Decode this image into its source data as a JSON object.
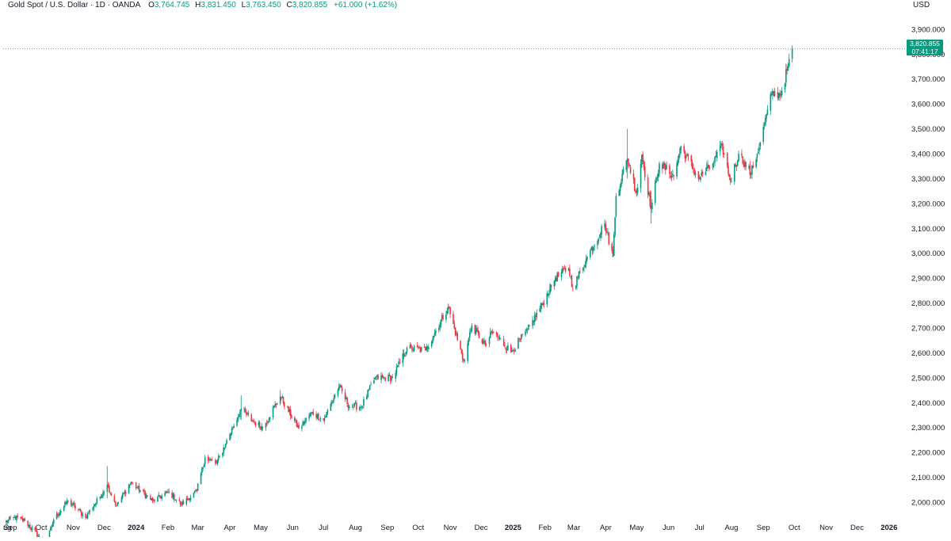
{
  "header": {
    "title": "Gold Spot / U.S. Dollar · 1D · OANDA",
    "open_label": "O",
    "open_value": "3,764.745",
    "high_label": "H",
    "high_value": "3,831.450",
    "low_label": "L",
    "low_value": "3,763.450",
    "close_label": "C",
    "close_value": "3,820.855",
    "change": "+61.000 (+1.62%)"
  },
  "currency": "USD",
  "last_price_tag": {
    "price": "3,820.855",
    "countdown": "07:41:17"
  },
  "colors": {
    "up": "#089981",
    "down": "#f23645",
    "text": "#131722",
    "axis_text": "#131722"
  },
  "chart_data": {
    "type": "candlestick",
    "title": "Gold Spot / U.S. Dollar · 1D · OANDA",
    "ylabel": "USD",
    "y_axis_position": "right",
    "ylim": [
      1930,
      3960
    ],
    "y_ticks": [
      2000,
      2100,
      2200,
      2300,
      2400,
      2500,
      2600,
      2700,
      2800,
      2900,
      3000,
      3100,
      3200,
      3300,
      3400,
      3500,
      3600,
      3700,
      3800,
      3900
    ],
    "y_tick_labels": [
      "2,000.000",
      "2,100.000",
      "2,200.000",
      "2,300.000",
      "2,400.000",
      "2,500.000",
      "2,600.000",
      "2,700.000",
      "2,800.000",
      "2,900.000",
      "3,000.000",
      "3,100.000",
      "3,200.000",
      "3,300.000",
      "3,400.000",
      "3,500.000",
      "3,600.000",
      "3,700.000",
      "3,800.000",
      "3,900.000"
    ],
    "xlim": [
      "2023-08-25",
      "2026-01-15"
    ],
    "x_ticks": [
      {
        "date": "2023-08-28",
        "label": "ug"
      },
      {
        "date": "2023-09-01",
        "label": "Sep"
      },
      {
        "date": "2023-10-01",
        "label": "Oct"
      },
      {
        "date": "2023-11-01",
        "label": "Nov"
      },
      {
        "date": "2023-12-01",
        "label": "Dec"
      },
      {
        "date": "2024-01-01",
        "label": "2024",
        "bold": true
      },
      {
        "date": "2024-02-01",
        "label": "Feb"
      },
      {
        "date": "2024-03-01",
        "label": "Mar"
      },
      {
        "date": "2024-04-01",
        "label": "Apr"
      },
      {
        "date": "2024-05-01",
        "label": "May"
      },
      {
        "date": "2024-06-01",
        "label": "Jun"
      },
      {
        "date": "2024-07-01",
        "label": "Jul"
      },
      {
        "date": "2024-08-01",
        "label": "Aug"
      },
      {
        "date": "2024-09-01",
        "label": "Sep"
      },
      {
        "date": "2024-10-01",
        "label": "Oct"
      },
      {
        "date": "2024-11-01",
        "label": "Nov"
      },
      {
        "date": "2024-12-01",
        "label": "Dec"
      },
      {
        "date": "2025-01-01",
        "label": "2025",
        "bold": true
      },
      {
        "date": "2025-02-01",
        "label": "Feb"
      },
      {
        "date": "2025-03-01",
        "label": "Mar"
      },
      {
        "date": "2025-04-01",
        "label": "Apr"
      },
      {
        "date": "2025-05-01",
        "label": "May"
      },
      {
        "date": "2025-06-01",
        "label": "Jun"
      },
      {
        "date": "2025-07-01",
        "label": "Jul"
      },
      {
        "date": "2025-08-01",
        "label": "Aug"
      },
      {
        "date": "2025-09-01",
        "label": "Sep"
      },
      {
        "date": "2025-10-01",
        "label": "Oct"
      },
      {
        "date": "2025-11-01",
        "label": "Nov"
      },
      {
        "date": "2025-12-01",
        "label": "Dec"
      },
      {
        "date": "2026-01-01",
        "label": "2026",
        "bold": true
      }
    ],
    "last_close": 3820.855,
    "last_price_line": "dotted",
    "grid": false,
    "price_path": [
      [
        "2023-08-25",
        1915
      ],
      [
        "2023-09-04",
        1940
      ],
      [
        "2023-09-15",
        1925
      ],
      [
        "2023-09-28",
        1865
      ],
      [
        "2023-10-05",
        1820
      ],
      [
        "2023-10-13",
        1930
      ],
      [
        "2023-10-27",
        2005
      ],
      [
        "2023-11-13",
        1940
      ],
      [
        "2023-11-30",
        2040
      ],
      [
        "2023-12-04",
        2070
      ],
      [
        "2023-12-13",
        1985
      ],
      [
        "2023-12-27",
        2080
      ],
      [
        "2024-01-17",
        2005
      ],
      [
        "2024-02-02",
        2040
      ],
      [
        "2024-02-14",
        1990
      ],
      [
        "2024-02-29",
        2045
      ],
      [
        "2024-03-08",
        2180
      ],
      [
        "2024-03-19",
        2155
      ],
      [
        "2024-03-28",
        2235
      ],
      [
        "2024-04-12",
        2375
      ],
      [
        "2024-04-23",
        2325
      ],
      [
        "2024-05-03",
        2300
      ],
      [
        "2024-05-20",
        2425
      ],
      [
        "2024-06-07",
        2295
      ],
      [
        "2024-06-20",
        2360
      ],
      [
        "2024-07-01",
        2330
      ],
      [
        "2024-07-16",
        2465
      ],
      [
        "2024-07-26",
        2385
      ],
      [
        "2024-08-07",
        2385
      ],
      [
        "2024-08-20",
        2500
      ],
      [
        "2024-09-06",
        2500
      ],
      [
        "2024-09-20",
        2620
      ],
      [
        "2024-10-08",
        2610
      ],
      [
        "2024-10-30",
        2785
      ],
      [
        "2024-11-14",
        2565
      ],
      [
        "2024-11-22",
        2710
      ],
      [
        "2024-12-05",
        2630
      ],
      [
        "2024-12-12",
        2685
      ],
      [
        "2024-12-30",
        2605
      ],
      [
        "2025-01-15",
        2690
      ],
      [
        "2025-01-30",
        2800
      ],
      [
        "2025-02-11",
        2900
      ],
      [
        "2025-02-24",
        2940
      ],
      [
        "2025-02-28",
        2860
      ],
      [
        "2025-03-14",
        2985
      ],
      [
        "2025-03-31",
        3120
      ],
      [
        "2025-04-08",
        2985
      ],
      [
        "2025-04-11",
        3230
      ],
      [
        "2025-04-22",
        3380
      ],
      [
        "2025-05-01",
        3240
      ],
      [
        "2025-05-06",
        3395
      ],
      [
        "2025-05-15",
        3180
      ],
      [
        "2025-05-23",
        3360
      ],
      [
        "2025-06-06",
        3310
      ],
      [
        "2025-06-13",
        3430
      ],
      [
        "2025-06-30",
        3300
      ],
      [
        "2025-07-14",
        3360
      ],
      [
        "2025-07-23",
        3430
      ],
      [
        "2025-07-31",
        3290
      ],
      [
        "2025-08-08",
        3400
      ],
      [
        "2025-08-20",
        3320
      ],
      [
        "2025-08-29",
        3445
      ],
      [
        "2025-09-09",
        3640
      ],
      [
        "2025-09-18",
        3640
      ],
      [
        "2025-09-25",
        3750
      ],
      [
        "2025-09-29",
        3820
      ]
    ],
    "notable_wicks": [
      {
        "date": "2023-12-04",
        "high": 2145,
        "low": 2015
      },
      {
        "date": "2024-04-12",
        "high": 2430,
        "low": 2330
      },
      {
        "date": "2024-05-20",
        "high": 2450,
        "low": 2395
      },
      {
        "date": "2025-04-22",
        "high": 3500,
        "low": 3300
      },
      {
        "date": "2025-05-15",
        "high": 3250,
        "low": 3120
      }
    ]
  }
}
